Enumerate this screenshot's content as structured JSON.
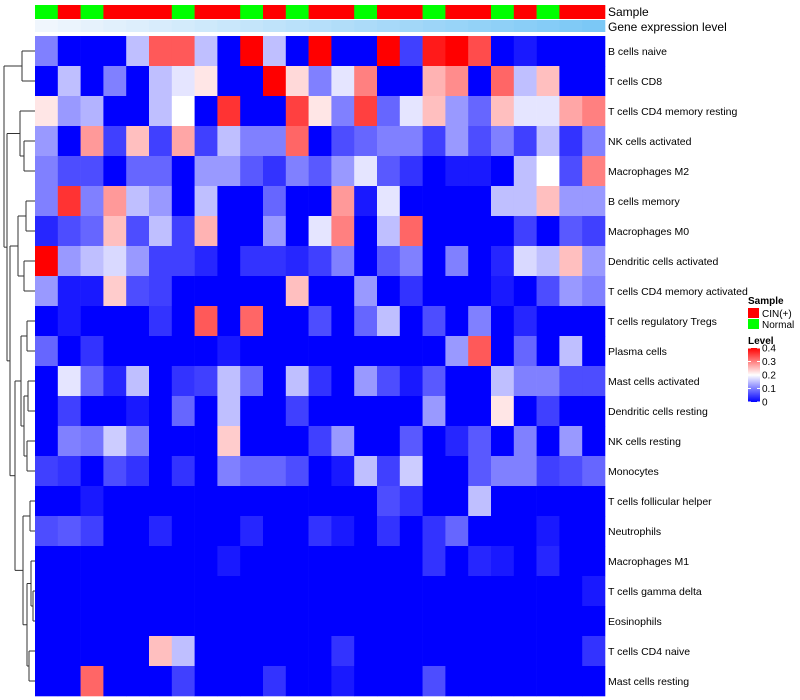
{
  "chart_data": {
    "type": "heatmap",
    "annotation_labels": [
      "Sample",
      "Gene expression level"
    ],
    "sample_groups": [
      "N",
      "C",
      "N",
      "C",
      "C",
      "C",
      "N",
      "C",
      "C",
      "N",
      "C",
      "N",
      "C",
      "C",
      "N",
      "C",
      "C",
      "N",
      "C",
      "C",
      "N",
      "C",
      "N",
      "C",
      "C"
    ],
    "group_colors": {
      "C": "#ff0000",
      "N": "#00ff00"
    },
    "expression_levels": [
      0.0,
      0.02,
      0.04,
      0.06,
      0.08,
      0.1,
      0.12,
      0.14,
      0.16,
      0.18,
      0.2,
      0.22,
      0.24,
      0.26,
      0.28,
      0.3,
      0.32,
      0.34,
      0.36,
      0.38,
      0.4,
      0.42,
      0.44,
      0.46,
      0.48
    ],
    "expression_color_range": [
      "#f0f6fd",
      "#7bc8f6"
    ],
    "rows": [
      "B cells naive",
      "T cells CD8",
      "T cells CD4 memory resting",
      "NK cells activated",
      "Macrophages M2",
      "B cells memory",
      "Macrophages M0",
      "Dendritic cells activated",
      "T cells CD4 memory activated",
      "T cells regulatory  Tregs",
      "Plasma cells",
      "Mast cells activated",
      "Dendritic cells resting",
      "NK cells resting",
      "Monocytes",
      "T cells follicular helper",
      "Neutrophils",
      "Macrophages M1",
      "T cells gamma delta",
      "Eosinophils",
      "T cells CD4 naive",
      "Mast cells resting"
    ],
    "values": [
      [
        0.1,
        0.0,
        0.0,
        0.0,
        0.15,
        0.33,
        0.33,
        0.15,
        0.0,
        0.4,
        0.15,
        0.0,
        0.4,
        0.0,
        0.0,
        0.4,
        0.05,
        0.38,
        0.4,
        0.34,
        0.0,
        0.02,
        0.0,
        0.0,
        0.0
      ],
      [
        0.0,
        0.15,
        0.0,
        0.1,
        0.0,
        0.15,
        0.18,
        0.22,
        0.0,
        0.0,
        0.4,
        0.23,
        0.1,
        0.18,
        0.3,
        0.0,
        0.0,
        0.26,
        0.29,
        0.0,
        0.32,
        0.15,
        0.25,
        0.0,
        0.0
      ],
      [
        0.22,
        0.12,
        0.14,
        0.0,
        0.0,
        0.15,
        0.2,
        0.0,
        0.36,
        0.0,
        0.0,
        0.35,
        0.22,
        0.1,
        0.35,
        0.08,
        0.18,
        0.25,
        0.12,
        0.08,
        0.25,
        0.18,
        0.18,
        0.27,
        0.3
      ],
      [
        0.12,
        0.0,
        0.28,
        0.05,
        0.25,
        0.05,
        0.27,
        0.05,
        0.15,
        0.1,
        0.1,
        0.32,
        0.0,
        0.06,
        0.08,
        0.1,
        0.1,
        0.05,
        0.12,
        0.06,
        0.1,
        0.05,
        0.15,
        0.04,
        0.1
      ],
      [
        0.1,
        0.06,
        0.06,
        0.0,
        0.08,
        0.08,
        0.0,
        0.12,
        0.12,
        0.07,
        0.04,
        0.1,
        0.07,
        0.12,
        0.18,
        0.07,
        0.04,
        0.0,
        0.02,
        0.02,
        0.0,
        0.15,
        0.2,
        0.06,
        0.3
      ],
      [
        0.1,
        0.36,
        0.1,
        0.28,
        0.15,
        0.12,
        0.0,
        0.15,
        0.0,
        0.0,
        0.08,
        0.0,
        0.0,
        0.28,
        0.02,
        0.18,
        0.0,
        0.0,
        0.0,
        0.0,
        0.15,
        0.15,
        0.25,
        0.12,
        0.12
      ],
      [
        0.03,
        0.06,
        0.08,
        0.25,
        0.06,
        0.15,
        0.05,
        0.26,
        0.0,
        0.0,
        0.12,
        0.0,
        0.18,
        0.3,
        0.0,
        0.15,
        0.32,
        0.0,
        0.0,
        0.0,
        0.0,
        0.05,
        0.0,
        0.07,
        0.05
      ],
      [
        0.4,
        0.12,
        0.15,
        0.17,
        0.12,
        0.05,
        0.05,
        0.03,
        0.0,
        0.04,
        0.04,
        0.03,
        0.05,
        0.1,
        0.0,
        0.07,
        0.1,
        0.0,
        0.1,
        0.0,
        0.03,
        0.17,
        0.15,
        0.25,
        0.12
      ],
      [
        0.12,
        0.02,
        0.02,
        0.24,
        0.06,
        0.05,
        0.0,
        0.0,
        0.0,
        0.0,
        0.0,
        0.25,
        0.0,
        0.0,
        0.12,
        0.0,
        0.04,
        0.0,
        0.0,
        0.0,
        0.02,
        0.0,
        0.06,
        0.12,
        0.1
      ],
      [
        0.0,
        0.02,
        0.0,
        0.0,
        0.0,
        0.04,
        0.0,
        0.33,
        0.0,
        0.32,
        0.0,
        0.0,
        0.06,
        0.0,
        0.08,
        0.15,
        0.0,
        0.06,
        0.0,
        0.1,
        0.0,
        0.03,
        0.0,
        0.0,
        0.0
      ],
      [
        0.08,
        0.0,
        0.04,
        0.0,
        0.0,
        0.0,
        0.0,
        0.0,
        0.02,
        0.0,
        0.0,
        0.0,
        0.0,
        0.0,
        0.0,
        0.0,
        0.0,
        0.0,
        0.12,
        0.33,
        0.0,
        0.08,
        0.0,
        0.15,
        0.0
      ],
      [
        0.0,
        0.18,
        0.08,
        0.03,
        0.15,
        0.0,
        0.04,
        0.05,
        0.15,
        0.08,
        0.0,
        0.15,
        0.04,
        0.0,
        0.12,
        0.06,
        0.02,
        0.07,
        0.0,
        0.0,
        0.15,
        0.1,
        0.1,
        0.06,
        0.06
      ],
      [
        0.0,
        0.05,
        0.0,
        0.0,
        0.02,
        0.0,
        0.08,
        0.0,
        0.15,
        0.0,
        0.0,
        0.05,
        0.0,
        0.0,
        0.0,
        0.0,
        0.0,
        0.12,
        0.0,
        0.0,
        0.22,
        0.0,
        0.05,
        0.0,
        0.0
      ],
      [
        0.0,
        0.1,
        0.09,
        0.16,
        0.1,
        0.0,
        0.0,
        0.0,
        0.24,
        0.0,
        0.0,
        0.0,
        0.05,
        0.12,
        0.0,
        0.0,
        0.07,
        0.0,
        0.03,
        0.07,
        0.0,
        0.1,
        0.0,
        0.12,
        0.0
      ],
      [
        0.05,
        0.04,
        0.0,
        0.06,
        0.04,
        0.0,
        0.04,
        0.0,
        0.1,
        0.08,
        0.08,
        0.06,
        0.0,
        0.02,
        0.15,
        0.05,
        0.16,
        0.0,
        0.0,
        0.07,
        0.1,
        0.1,
        0.05,
        0.06,
        0.08
      ],
      [
        0.0,
        0.0,
        0.02,
        0.0,
        0.0,
        0.0,
        0.0,
        0.0,
        0.0,
        0.0,
        0.0,
        0.0,
        0.0,
        0.0,
        0.0,
        0.06,
        0.04,
        0.0,
        0.0,
        0.15,
        0.0,
        0.0,
        0.0,
        0.0,
        0.0
      ],
      [
        0.06,
        0.07,
        0.05,
        0.0,
        0.0,
        0.03,
        0.0,
        0.0,
        0.0,
        0.03,
        0.0,
        0.0,
        0.04,
        0.02,
        0.0,
        0.04,
        0.0,
        0.04,
        0.08,
        0.0,
        0.0,
        0.0,
        0.02,
        0.0,
        0.0
      ],
      [
        0.0,
        0.0,
        0.0,
        0.0,
        0.0,
        0.0,
        0.0,
        0.0,
        0.02,
        0.0,
        0.0,
        0.0,
        0.0,
        0.0,
        0.0,
        0.0,
        0.0,
        0.04,
        0.0,
        0.03,
        0.02,
        0.0,
        0.03,
        0.0,
        0.0
      ],
      [
        0.0,
        0.0,
        0.0,
        0.0,
        0.0,
        0.0,
        0.0,
        0.0,
        0.0,
        0.0,
        0.0,
        0.0,
        0.0,
        0.0,
        0.0,
        0.0,
        0.0,
        0.0,
        0.0,
        0.0,
        0.0,
        0.0,
        0.0,
        0.0,
        0.02
      ],
      [
        0.0,
        0.0,
        0.0,
        0.0,
        0.0,
        0.0,
        0.0,
        0.0,
        0.0,
        0.0,
        0.0,
        0.0,
        0.0,
        0.0,
        0.0,
        0.0,
        0.0,
        0.0,
        0.0,
        0.0,
        0.0,
        0.0,
        0.0,
        0.0,
        0.0
      ],
      [
        0.0,
        0.0,
        0.0,
        0.0,
        0.0,
        0.25,
        0.15,
        0.0,
        0.0,
        0.0,
        0.0,
        0.0,
        0.0,
        0.04,
        0.0,
        0.0,
        0.0,
        0.0,
        0.0,
        0.0,
        0.0,
        0.0,
        0.0,
        0.0,
        0.04
      ],
      [
        0.0,
        0.0,
        0.32,
        0.0,
        0.0,
        0.0,
        0.05,
        0.0,
        0.0,
        0.0,
        0.04,
        0.0,
        0.0,
        0.02,
        0.0,
        0.0,
        0.0,
        0.06,
        0.0,
        0.0,
        0.0,
        0.0,
        0.0,
        0.0,
        0.0
      ]
    ],
    "legends": {
      "sample": {
        "title": "Sample",
        "items": [
          {
            "label": "CIN(+)",
            "color": "#ff0000"
          },
          {
            "label": "Normal",
            "color": "#00ff00"
          }
        ]
      },
      "level": {
        "title": "Level",
        "range": [
          0,
          0.4
        ],
        "ticks": [
          {
            "value": 0.4,
            "label": "0.4"
          },
          {
            "value": 0.3,
            "label": "0.3"
          },
          {
            "value": 0.2,
            "label": "0.2"
          },
          {
            "value": 0.1,
            "label": "0.1"
          },
          {
            "value": 0.0,
            "label": "0"
          }
        ],
        "colors": {
          "low": "#0000ff",
          "mid": "#ffffff",
          "high": "#ff0000",
          "mid_value": 0.2
        }
      }
    }
  }
}
